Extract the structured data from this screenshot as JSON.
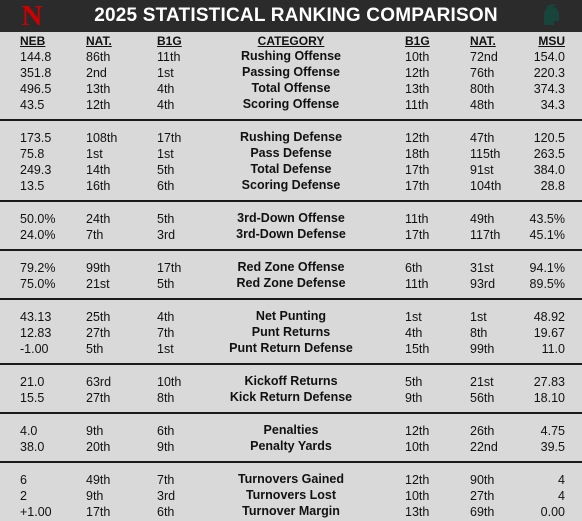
{
  "title": "2025 STATISTICAL RANKING COMPARISON",
  "logos": {
    "left": "N",
    "left_color": "#d00000",
    "right_color": "#18453b"
  },
  "columns": [
    "NEB",
    "NAT.",
    "B1G",
    "CATEGORY",
    "B1G",
    "NAT.",
    "MSU"
  ],
  "groups": [
    {
      "rows": [
        [
          "144.8",
          "86th",
          "11th",
          "Rushing Offense",
          "10th",
          "72nd",
          "154.0"
        ],
        [
          "351.8",
          "2nd",
          "1st",
          "Passing Offense",
          "12th",
          "76th",
          "220.3"
        ],
        [
          "496.5",
          "13th",
          "4th",
          "Total Offense",
          "13th",
          "80th",
          "374.3"
        ],
        [
          "43.5",
          "12th",
          "4th",
          "Scoring Offense",
          "11th",
          "48th",
          "34.3"
        ]
      ]
    },
    {
      "rows": [
        [
          "173.5",
          "108th",
          "17th",
          "Rushing Defense",
          "12th",
          "47th",
          "120.5"
        ],
        [
          "75.8",
          "1st",
          "1st",
          "Pass Defense",
          "18th",
          "115th",
          "263.5"
        ],
        [
          "249.3",
          "14th",
          "5th",
          "Total Defense",
          "17th",
          "91st",
          "384.0"
        ],
        [
          "13.5",
          "16th",
          "6th",
          "Scoring Defense",
          "17th",
          "104th",
          "28.8"
        ]
      ]
    },
    {
      "rows": [
        [
          "50.0%",
          "24th",
          "5th",
          "3rd-Down Offense",
          "11th",
          "49th",
          "43.5%"
        ],
        [
          "24.0%",
          "7th",
          "3rd",
          "3rd-Down Defense",
          "17th",
          "117th",
          "45.1%"
        ]
      ]
    },
    {
      "rows": [
        [
          "79.2%",
          "99th",
          "17th",
          "Red Zone Offense",
          "6th",
          "31st",
          "94.1%"
        ],
        [
          "75.0%",
          "21st",
          "5th",
          "Red Zone Defense",
          "11th",
          "93rd",
          "89.5%"
        ]
      ]
    },
    {
      "rows": [
        [
          "43.13",
          "25th",
          "4th",
          "Net Punting",
          "1st",
          "1st",
          "48.92"
        ],
        [
          "12.83",
          "27th",
          "7th",
          "Punt Returns",
          "4th",
          "8th",
          "19.67"
        ],
        [
          "-1.00",
          "5th",
          "1st",
          "Punt Return Defense",
          "15th",
          "99th",
          "11.0"
        ]
      ]
    },
    {
      "rows": [
        [
          "21.0",
          "63rd",
          "10th",
          "Kickoff Returns",
          "5th",
          "21st",
          "27.83"
        ],
        [
          "15.5",
          "27th",
          "8th",
          "Kick Return Defense",
          "9th",
          "56th",
          "18.10"
        ]
      ]
    },
    {
      "rows": [
        [
          "4.0",
          "9th",
          "6th",
          "Penalties",
          "12th",
          "26th",
          "4.75"
        ],
        [
          "38.0",
          "20th",
          "9th",
          "Penalty Yards",
          "10th",
          "22nd",
          "39.5"
        ]
      ]
    },
    {
      "rows": [
        [
          "6",
          "49th",
          "7th",
          "Turnovers Gained",
          "12th",
          "90th",
          "4"
        ],
        [
          "2",
          "9th",
          "3rd",
          "Turnovers Lost",
          "10th",
          "27th",
          "4"
        ],
        [
          "+1.00",
          "17th",
          "6th",
          "Turnover Margin",
          "13th",
          "69th",
          "0.00"
        ]
      ]
    }
  ]
}
